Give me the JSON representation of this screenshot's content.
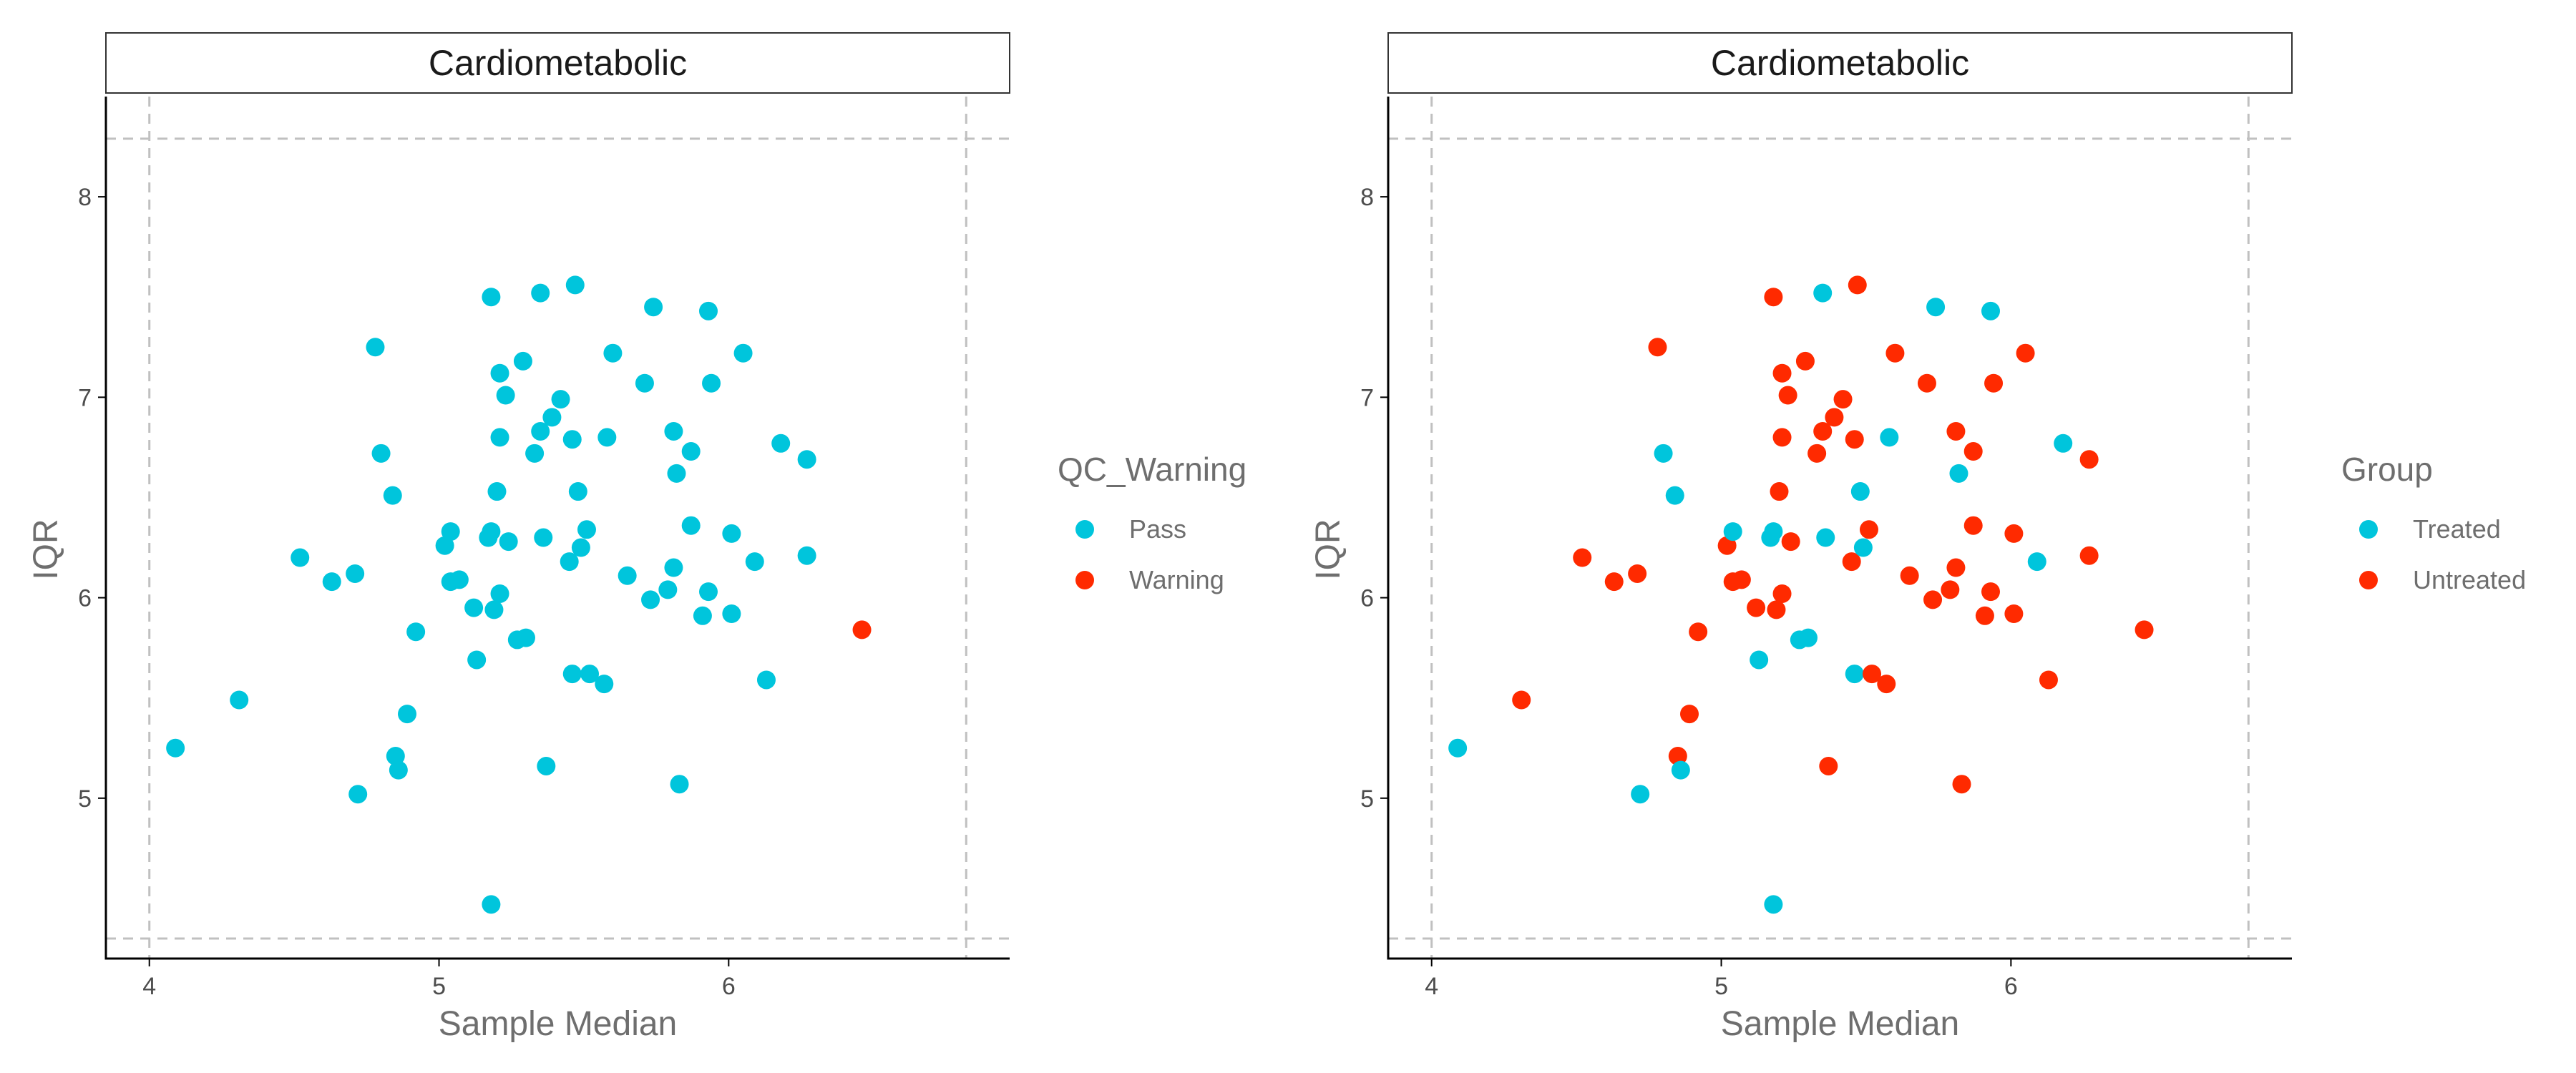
{
  "colors": {
    "cyan": "#00c5dc",
    "red": "#ff2a00",
    "axis": "#000000",
    "dashed_line": "#c0c0c0",
    "strip_border": "#333333"
  },
  "chart_data": [
    {
      "type": "scatter",
      "title": "Cardiometabolic",
      "xlabel": "Sample Median",
      "ylabel": "IQR",
      "xlim": [
        3.85,
        6.97
      ],
      "ylim": [
        4.2,
        8.5
      ],
      "xticks": [
        4,
        5,
        6
      ],
      "yticks": [
        5,
        6,
        7,
        8
      ],
      "grid": false,
      "reference_lines": {
        "x": [
          4.0,
          6.82
        ],
        "y": [
          4.3,
          8.29
        ],
        "style": "dashed"
      },
      "legend": {
        "title": "QC_Warning",
        "position": "right",
        "entries": [
          {
            "label": "Pass",
            "color": "#00c5dc"
          },
          {
            "label": "Warning",
            "color": "#ff2a00"
          }
        ]
      },
      "points": [
        {
          "x": 4.09,
          "y": 5.25,
          "c": 0
        },
        {
          "x": 4.31,
          "y": 5.49,
          "c": 0
        },
        {
          "x": 4.52,
          "y": 6.2,
          "c": 0
        },
        {
          "x": 4.63,
          "y": 6.08,
          "c": 0
        },
        {
          "x": 4.71,
          "y": 6.12,
          "c": 0
        },
        {
          "x": 4.72,
          "y": 5.02,
          "c": 0
        },
        {
          "x": 4.78,
          "y": 7.25,
          "c": 0
        },
        {
          "x": 4.8,
          "y": 6.72,
          "c": 0
        },
        {
          "x": 4.84,
          "y": 6.51,
          "c": 0
        },
        {
          "x": 4.85,
          "y": 5.21,
          "c": 0
        },
        {
          "x": 4.86,
          "y": 5.14,
          "c": 0
        },
        {
          "x": 4.89,
          "y": 5.42,
          "c": 0
        },
        {
          "x": 4.92,
          "y": 5.83,
          "c": 0
        },
        {
          "x": 5.02,
          "y": 6.26,
          "c": 0
        },
        {
          "x": 5.04,
          "y": 6.33,
          "c": 0
        },
        {
          "x": 5.04,
          "y": 6.08,
          "c": 0
        },
        {
          "x": 5.07,
          "y": 6.09,
          "c": 0
        },
        {
          "x": 5.12,
          "y": 5.95,
          "c": 0
        },
        {
          "x": 5.13,
          "y": 5.69,
          "c": 0
        },
        {
          "x": 5.17,
          "y": 6.3,
          "c": 0
        },
        {
          "x": 5.18,
          "y": 6.33,
          "c": 0
        },
        {
          "x": 5.18,
          "y": 7.5,
          "c": 0
        },
        {
          "x": 5.19,
          "y": 5.94,
          "c": 0
        },
        {
          "x": 5.18,
          "y": 4.47,
          "c": 0
        },
        {
          "x": 5.2,
          "y": 6.53,
          "c": 0
        },
        {
          "x": 5.21,
          "y": 6.8,
          "c": 0
        },
        {
          "x": 5.21,
          "y": 6.02,
          "c": 0
        },
        {
          "x": 5.21,
          "y": 7.12,
          "c": 0
        },
        {
          "x": 5.23,
          "y": 7.01,
          "c": 0
        },
        {
          "x": 5.24,
          "y": 6.28,
          "c": 0
        },
        {
          "x": 5.27,
          "y": 5.79,
          "c": 0
        },
        {
          "x": 5.29,
          "y": 7.18,
          "c": 0
        },
        {
          "x": 5.3,
          "y": 5.8,
          "c": 0
        },
        {
          "x": 5.33,
          "y": 6.72,
          "c": 0
        },
        {
          "x": 5.35,
          "y": 7.52,
          "c": 0
        },
        {
          "x": 5.35,
          "y": 6.83,
          "c": 0
        },
        {
          "x": 5.36,
          "y": 6.3,
          "c": 0
        },
        {
          "x": 5.37,
          "y": 5.16,
          "c": 0
        },
        {
          "x": 5.39,
          "y": 6.9,
          "c": 0
        },
        {
          "x": 5.42,
          "y": 6.99,
          "c": 0
        },
        {
          "x": 5.45,
          "y": 6.18,
          "c": 0
        },
        {
          "x": 5.46,
          "y": 5.62,
          "c": 0
        },
        {
          "x": 5.46,
          "y": 6.79,
          "c": 0
        },
        {
          "x": 5.47,
          "y": 7.56,
          "c": 0
        },
        {
          "x": 5.48,
          "y": 6.53,
          "c": 0
        },
        {
          "x": 5.49,
          "y": 6.25,
          "c": 0
        },
        {
          "x": 5.51,
          "y": 6.34,
          "c": 0
        },
        {
          "x": 5.52,
          "y": 5.62,
          "c": 0
        },
        {
          "x": 5.57,
          "y": 5.57,
          "c": 0
        },
        {
          "x": 5.58,
          "y": 6.8,
          "c": 0
        },
        {
          "x": 5.6,
          "y": 7.22,
          "c": 0
        },
        {
          "x": 5.65,
          "y": 6.11,
          "c": 0
        },
        {
          "x": 5.71,
          "y": 7.07,
          "c": 0
        },
        {
          "x": 5.73,
          "y": 5.99,
          "c": 0
        },
        {
          "x": 5.74,
          "y": 7.45,
          "c": 0
        },
        {
          "x": 5.79,
          "y": 6.04,
          "c": 0
        },
        {
          "x": 5.81,
          "y": 6.83,
          "c": 0
        },
        {
          "x": 5.81,
          "y": 6.15,
          "c": 0
        },
        {
          "x": 5.82,
          "y": 6.62,
          "c": 0
        },
        {
          "x": 5.83,
          "y": 5.07,
          "c": 0
        },
        {
          "x": 5.87,
          "y": 6.73,
          "c": 0
        },
        {
          "x": 5.87,
          "y": 6.36,
          "c": 0
        },
        {
          "x": 5.91,
          "y": 5.91,
          "c": 0
        },
        {
          "x": 5.93,
          "y": 6.03,
          "c": 0
        },
        {
          "x": 5.93,
          "y": 7.43,
          "c": 0
        },
        {
          "x": 5.94,
          "y": 7.07,
          "c": 0
        },
        {
          "x": 6.01,
          "y": 6.32,
          "c": 0
        },
        {
          "x": 6.01,
          "y": 5.92,
          "c": 0
        },
        {
          "x": 6.05,
          "y": 7.22,
          "c": 0
        },
        {
          "x": 6.09,
          "y": 6.18,
          "c": 0
        },
        {
          "x": 6.13,
          "y": 5.59,
          "c": 0
        },
        {
          "x": 6.18,
          "y": 6.77,
          "c": 0
        },
        {
          "x": 6.27,
          "y": 6.21,
          "c": 0
        },
        {
          "x": 6.27,
          "y": 6.69,
          "c": 0
        },
        {
          "x": 6.46,
          "y": 5.84,
          "c": 1
        }
      ]
    },
    {
      "type": "scatter",
      "title": "Cardiometabolic",
      "xlabel": "Sample Median",
      "ylabel": "IQR",
      "xlim": [
        3.85,
        6.97
      ],
      "ylim": [
        4.2,
        8.5
      ],
      "xticks": [
        4,
        5,
        6
      ],
      "yticks": [
        5,
        6,
        7,
        8
      ],
      "grid": false,
      "reference_lines": {
        "x": [
          4.0,
          6.82
        ],
        "y": [
          4.3,
          8.29
        ],
        "style": "dashed"
      },
      "legend": {
        "title": "Group",
        "position": "right",
        "entries": [
          {
            "label": "Treated",
            "color": "#00c5dc"
          },
          {
            "label": "Untreated",
            "color": "#ff2a00"
          }
        ]
      },
      "points": [
        {
          "x": 4.09,
          "y": 5.25,
          "c": 0
        },
        {
          "x": 4.31,
          "y": 5.49,
          "c": 1
        },
        {
          "x": 4.52,
          "y": 6.2,
          "c": 1
        },
        {
          "x": 4.63,
          "y": 6.08,
          "c": 1
        },
        {
          "x": 4.71,
          "y": 6.12,
          "c": 1
        },
        {
          "x": 4.72,
          "y": 5.02,
          "c": 0
        },
        {
          "x": 4.78,
          "y": 7.25,
          "c": 1
        },
        {
          "x": 4.8,
          "y": 6.72,
          "c": 0
        },
        {
          "x": 4.84,
          "y": 6.51,
          "c": 0
        },
        {
          "x": 4.85,
          "y": 5.21,
          "c": 1
        },
        {
          "x": 4.86,
          "y": 5.14,
          "c": 0
        },
        {
          "x": 4.89,
          "y": 5.42,
          "c": 1
        },
        {
          "x": 4.92,
          "y": 5.83,
          "c": 1
        },
        {
          "x": 5.02,
          "y": 6.26,
          "c": 1
        },
        {
          "x": 5.04,
          "y": 6.33,
          "c": 0
        },
        {
          "x": 5.04,
          "y": 6.08,
          "c": 1
        },
        {
          "x": 5.07,
          "y": 6.09,
          "c": 1
        },
        {
          "x": 5.12,
          "y": 5.95,
          "c": 1
        },
        {
          "x": 5.13,
          "y": 5.69,
          "c": 0
        },
        {
          "x": 5.17,
          "y": 6.3,
          "c": 0
        },
        {
          "x": 5.18,
          "y": 6.33,
          "c": 0
        },
        {
          "x": 5.18,
          "y": 7.5,
          "c": 1
        },
        {
          "x": 5.19,
          "y": 5.94,
          "c": 1
        },
        {
          "x": 5.18,
          "y": 4.47,
          "c": 0
        },
        {
          "x": 5.2,
          "y": 6.53,
          "c": 1
        },
        {
          "x": 5.21,
          "y": 6.8,
          "c": 1
        },
        {
          "x": 5.21,
          "y": 6.02,
          "c": 1
        },
        {
          "x": 5.21,
          "y": 7.12,
          "c": 1
        },
        {
          "x": 5.23,
          "y": 7.01,
          "c": 1
        },
        {
          "x": 5.24,
          "y": 6.28,
          "c": 1
        },
        {
          "x": 5.27,
          "y": 5.79,
          "c": 0
        },
        {
          "x": 5.29,
          "y": 7.18,
          "c": 1
        },
        {
          "x": 5.3,
          "y": 5.8,
          "c": 0
        },
        {
          "x": 5.33,
          "y": 6.72,
          "c": 1
        },
        {
          "x": 5.35,
          "y": 7.52,
          "c": 0
        },
        {
          "x": 5.35,
          "y": 6.83,
          "c": 1
        },
        {
          "x": 5.36,
          "y": 6.3,
          "c": 0
        },
        {
          "x": 5.37,
          "y": 5.16,
          "c": 1
        },
        {
          "x": 5.39,
          "y": 6.9,
          "c": 1
        },
        {
          "x": 5.42,
          "y": 6.99,
          "c": 1
        },
        {
          "x": 5.45,
          "y": 6.18,
          "c": 1
        },
        {
          "x": 5.46,
          "y": 5.62,
          "c": 0
        },
        {
          "x": 5.46,
          "y": 6.79,
          "c": 1
        },
        {
          "x": 5.47,
          "y": 7.56,
          "c": 1
        },
        {
          "x": 5.48,
          "y": 6.53,
          "c": 0
        },
        {
          "x": 5.49,
          "y": 6.25,
          "c": 0
        },
        {
          "x": 5.51,
          "y": 6.34,
          "c": 1
        },
        {
          "x": 5.52,
          "y": 5.62,
          "c": 1
        },
        {
          "x": 5.57,
          "y": 5.57,
          "c": 1
        },
        {
          "x": 5.58,
          "y": 6.8,
          "c": 0
        },
        {
          "x": 5.6,
          "y": 7.22,
          "c": 1
        },
        {
          "x": 5.65,
          "y": 6.11,
          "c": 1
        },
        {
          "x": 5.71,
          "y": 7.07,
          "c": 1
        },
        {
          "x": 5.73,
          "y": 5.99,
          "c": 1
        },
        {
          "x": 5.74,
          "y": 7.45,
          "c": 0
        },
        {
          "x": 5.79,
          "y": 6.04,
          "c": 1
        },
        {
          "x": 5.81,
          "y": 6.83,
          "c": 1
        },
        {
          "x": 5.81,
          "y": 6.15,
          "c": 1
        },
        {
          "x": 5.82,
          "y": 6.62,
          "c": 0
        },
        {
          "x": 5.83,
          "y": 5.07,
          "c": 1
        },
        {
          "x": 5.87,
          "y": 6.73,
          "c": 1
        },
        {
          "x": 5.87,
          "y": 6.36,
          "c": 1
        },
        {
          "x": 5.91,
          "y": 5.91,
          "c": 1
        },
        {
          "x": 5.93,
          "y": 6.03,
          "c": 1
        },
        {
          "x": 5.93,
          "y": 7.43,
          "c": 0
        },
        {
          "x": 5.94,
          "y": 7.07,
          "c": 1
        },
        {
          "x": 6.01,
          "y": 6.32,
          "c": 1
        },
        {
          "x": 6.01,
          "y": 5.92,
          "c": 1
        },
        {
          "x": 6.05,
          "y": 7.22,
          "c": 1
        },
        {
          "x": 6.09,
          "y": 6.18,
          "c": 0
        },
        {
          "x": 6.13,
          "y": 5.59,
          "c": 1
        },
        {
          "x": 6.18,
          "y": 6.77,
          "c": 0
        },
        {
          "x": 6.27,
          "y": 6.21,
          "c": 1
        },
        {
          "x": 6.27,
          "y": 6.69,
          "c": 1
        },
        {
          "x": 6.46,
          "y": 5.84,
          "c": 1
        }
      ]
    }
  ]
}
